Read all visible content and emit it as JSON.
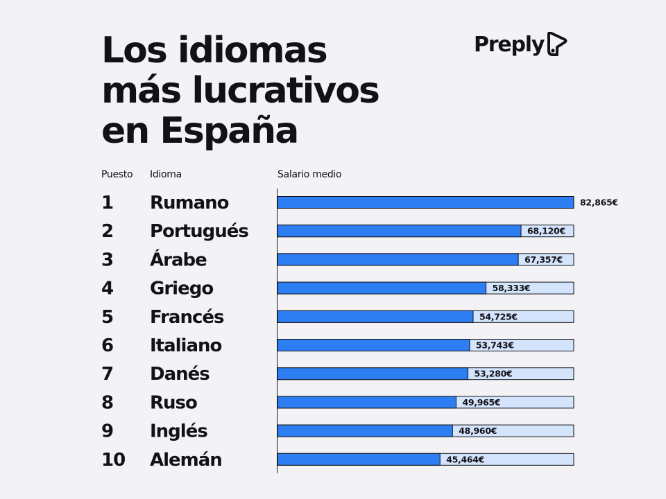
{
  "header": {
    "title_lines": [
      "Los idiomas",
      "más lucrativos",
      "en España"
    ],
    "logo_text": "Preply",
    "logo_icon": "preply-logo-icon"
  },
  "columns": {
    "rank": "Puesto",
    "language": "Idioma",
    "salary": "Salario medio"
  },
  "colors": {
    "bar_fill": "#2c7ef2",
    "bar_track": "#d3e4fc",
    "bar_border": "#121117",
    "background": "#f3f3f6"
  },
  "chart_data": {
    "type": "bar",
    "orientation": "horizontal",
    "title": "Los idiomas más lucrativos en España",
    "xlabel": "Salario medio",
    "xlim": [
      0,
      82865
    ],
    "rows": [
      {
        "rank": "1",
        "category": "Rumano",
        "value": 82865,
        "label": "82,865€"
      },
      {
        "rank": "2",
        "category": "Portugués",
        "value": 68120,
        "label": "68,120€"
      },
      {
        "rank": "3",
        "category": "Árabe",
        "value": 67357,
        "label": "67,357€"
      },
      {
        "rank": "4",
        "category": "Griego",
        "value": 58333,
        "label": "58,333€"
      },
      {
        "rank": "5",
        "category": "Francés",
        "value": 54725,
        "label": "54,725€"
      },
      {
        "rank": "6",
        "category": "Italiano",
        "value": 53743,
        "label": "53,743€"
      },
      {
        "rank": "7",
        "category": "Danés",
        "value": 53280,
        "label": "53,280€"
      },
      {
        "rank": "8",
        "category": "Ruso",
        "value": 49965,
        "label": "49,965€"
      },
      {
        "rank": "9",
        "category": "Inglés",
        "value": 48960,
        "label": "48,960€"
      },
      {
        "rank": "10",
        "category": "Alemán",
        "value": 45464,
        "label": "45,464€"
      }
    ]
  }
}
